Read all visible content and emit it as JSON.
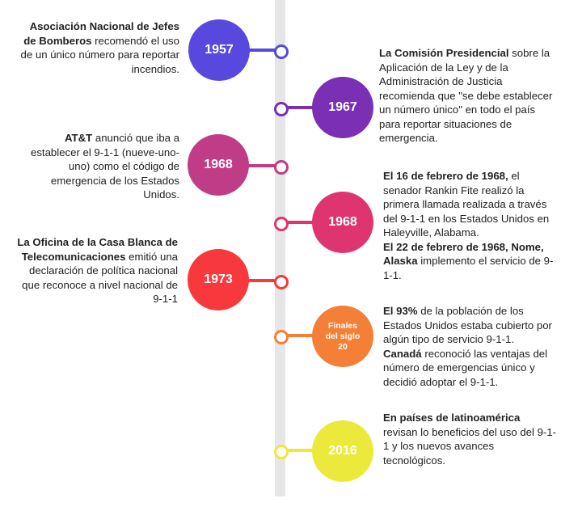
{
  "colors": {
    "e1957": "#5849de",
    "e1967": "#7a2fb4",
    "e1968a": "#c03c86",
    "e1968b": "#de3570",
    "e1973": "#f7383d",
    "finales": "#f47f37",
    "e2016": "#ece93d"
  },
  "events": [
    {
      "year": "1957",
      "strong": "Asociación Nacional de Jefes de Bomberos",
      "text": "recomendó el uso de un único número para reportar incendios."
    },
    {
      "year": "1967",
      "strong": "La Comisión Presidencial",
      "text": "sobre la Aplicación de la Ley y de la Administración de Justicia recomienda que \"se debe establecer un número único\" en todo el país para reportar situaciones de emergencia."
    },
    {
      "year": "1968",
      "strong": "AT&T",
      "text": "anunció que iba a establecer el 9-1-1 (nueve-uno-uno) como el código de emergencia de los Estados Unidos."
    },
    {
      "year": "1968",
      "strong1": "El 16 de febrero de 1968,",
      "text1": "el senador Rankin Fite realizó la primera llamada realizada a través del 9-1-1 en los Estados Unidos en Haleyville, Alabama.",
      "strong2": "El 22 de febrero de 1968, Nome, Alaska",
      "text2": "implemento el servicio de 9-1-1."
    },
    {
      "year": "1973",
      "strong": "La Oficina de la Casa Blanca de Telecomunicaciones",
      "text": "emitió una declaración de política nacional que reconoce a nivel nacional de 9-1-1"
    },
    {
      "year": "Finales del siglo 20",
      "strong1": "El 93%",
      "text1": "de la población de los Estados Unidos estaba cubierto por algún tipo de servicio 9-1-1.",
      "strong2": "Canadá",
      "text2": "reconoció las ventajas del número de emergencias único y decidió adoptar el 9-1-1."
    },
    {
      "year": "2016",
      "strong": "En países de latinoamérica",
      "text": "revisan lo beneficios del uso del 9-1-1 y los nuevos avances tecnológicos."
    }
  ]
}
